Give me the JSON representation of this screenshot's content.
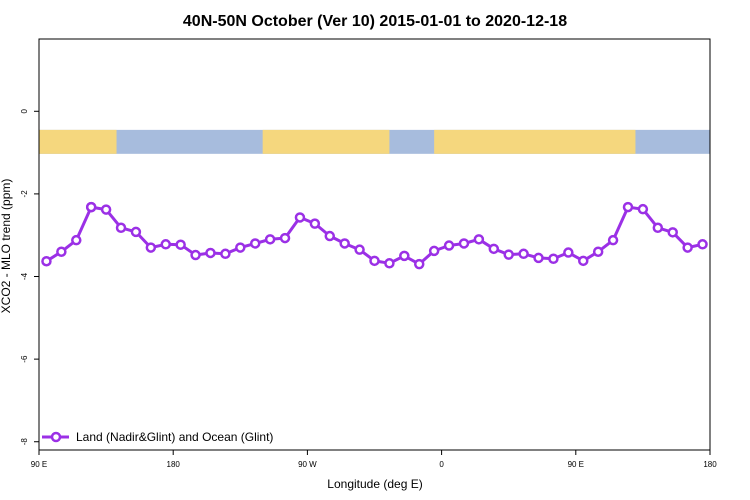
{
  "chart_data": {
    "type": "line",
    "title": "40N-50N October (Ver 10)   2015-01-01 to 2020-12-18",
    "xlabel": "Longitude (deg E)",
    "ylabel": "XCO2 - MLO trend (ppm)",
    "xlim": [
      90,
      540
    ],
    "ylim": [
      -8.2,
      1.75
    ],
    "x_ticks": [
      {
        "value": 90,
        "label": "90 E"
      },
      {
        "value": 180,
        "label": "180"
      },
      {
        "value": 270,
        "label": "90 W"
      },
      {
        "value": 360,
        "label": "0"
      },
      {
        "value": 450,
        "label": "90 E"
      },
      {
        "value": 540,
        "label": "180"
      }
    ],
    "y_ticks": [
      {
        "value": 0,
        "label": "0"
      },
      {
        "value": -2,
        "label": "-2"
      },
      {
        "value": -4,
        "label": "-4"
      },
      {
        "value": -6,
        "label": "-6"
      },
      {
        "value": -8,
        "label": "-8"
      }
    ],
    "grid": false,
    "legend_position": "bottom-left",
    "map_strip": {
      "y_top": -0.45,
      "y_bottom": -1.03,
      "land_color": "#F5D77E",
      "ocean_color": "#A7BCDD"
    },
    "series": [
      {
        "name": "Land (Nadir&Glint) and Ocean (Glint)",
        "color": "#9B30E6",
        "x": [
          95,
          105,
          115,
          125,
          125,
          135,
          145,
          155,
          165,
          175,
          185,
          195,
          205,
          215,
          225,
          235,
          245,
          255,
          265,
          275,
          285,
          295,
          305,
          315,
          325,
          335,
          345,
          355,
          365,
          375,
          385,
          395,
          405,
          415,
          425,
          435,
          445,
          455,
          465,
          475,
          485,
          495,
          505,
          515,
          525,
          535
        ],
        "y": [
          -3.63,
          -3.4,
          -3.12,
          -2.32,
          -2.32,
          -2.38,
          -2.82,
          -2.92,
          -3.3,
          -3.22,
          -3.23,
          -3.48,
          -3.43,
          -3.45,
          -3.3,
          -3.2,
          -3.1,
          -3.07,
          -2.57,
          -2.72,
          -3.02,
          -3.2,
          -3.35,
          -3.62,
          -3.68,
          -3.5,
          -3.7,
          -3.38,
          -3.25,
          -3.2,
          -3.1,
          -3.33,
          -3.47,
          -3.45,
          -3.55,
          -3.57,
          -3.42,
          -3.62,
          -3.4,
          -3.12,
          -2.32,
          -2.37,
          -2.82,
          -2.93,
          -3.3,
          -3.22
        ]
      }
    ]
  },
  "land_spans": [
    [
      90,
      142
    ],
    [
      240,
      325
    ],
    [
      355,
      490
    ]
  ]
}
